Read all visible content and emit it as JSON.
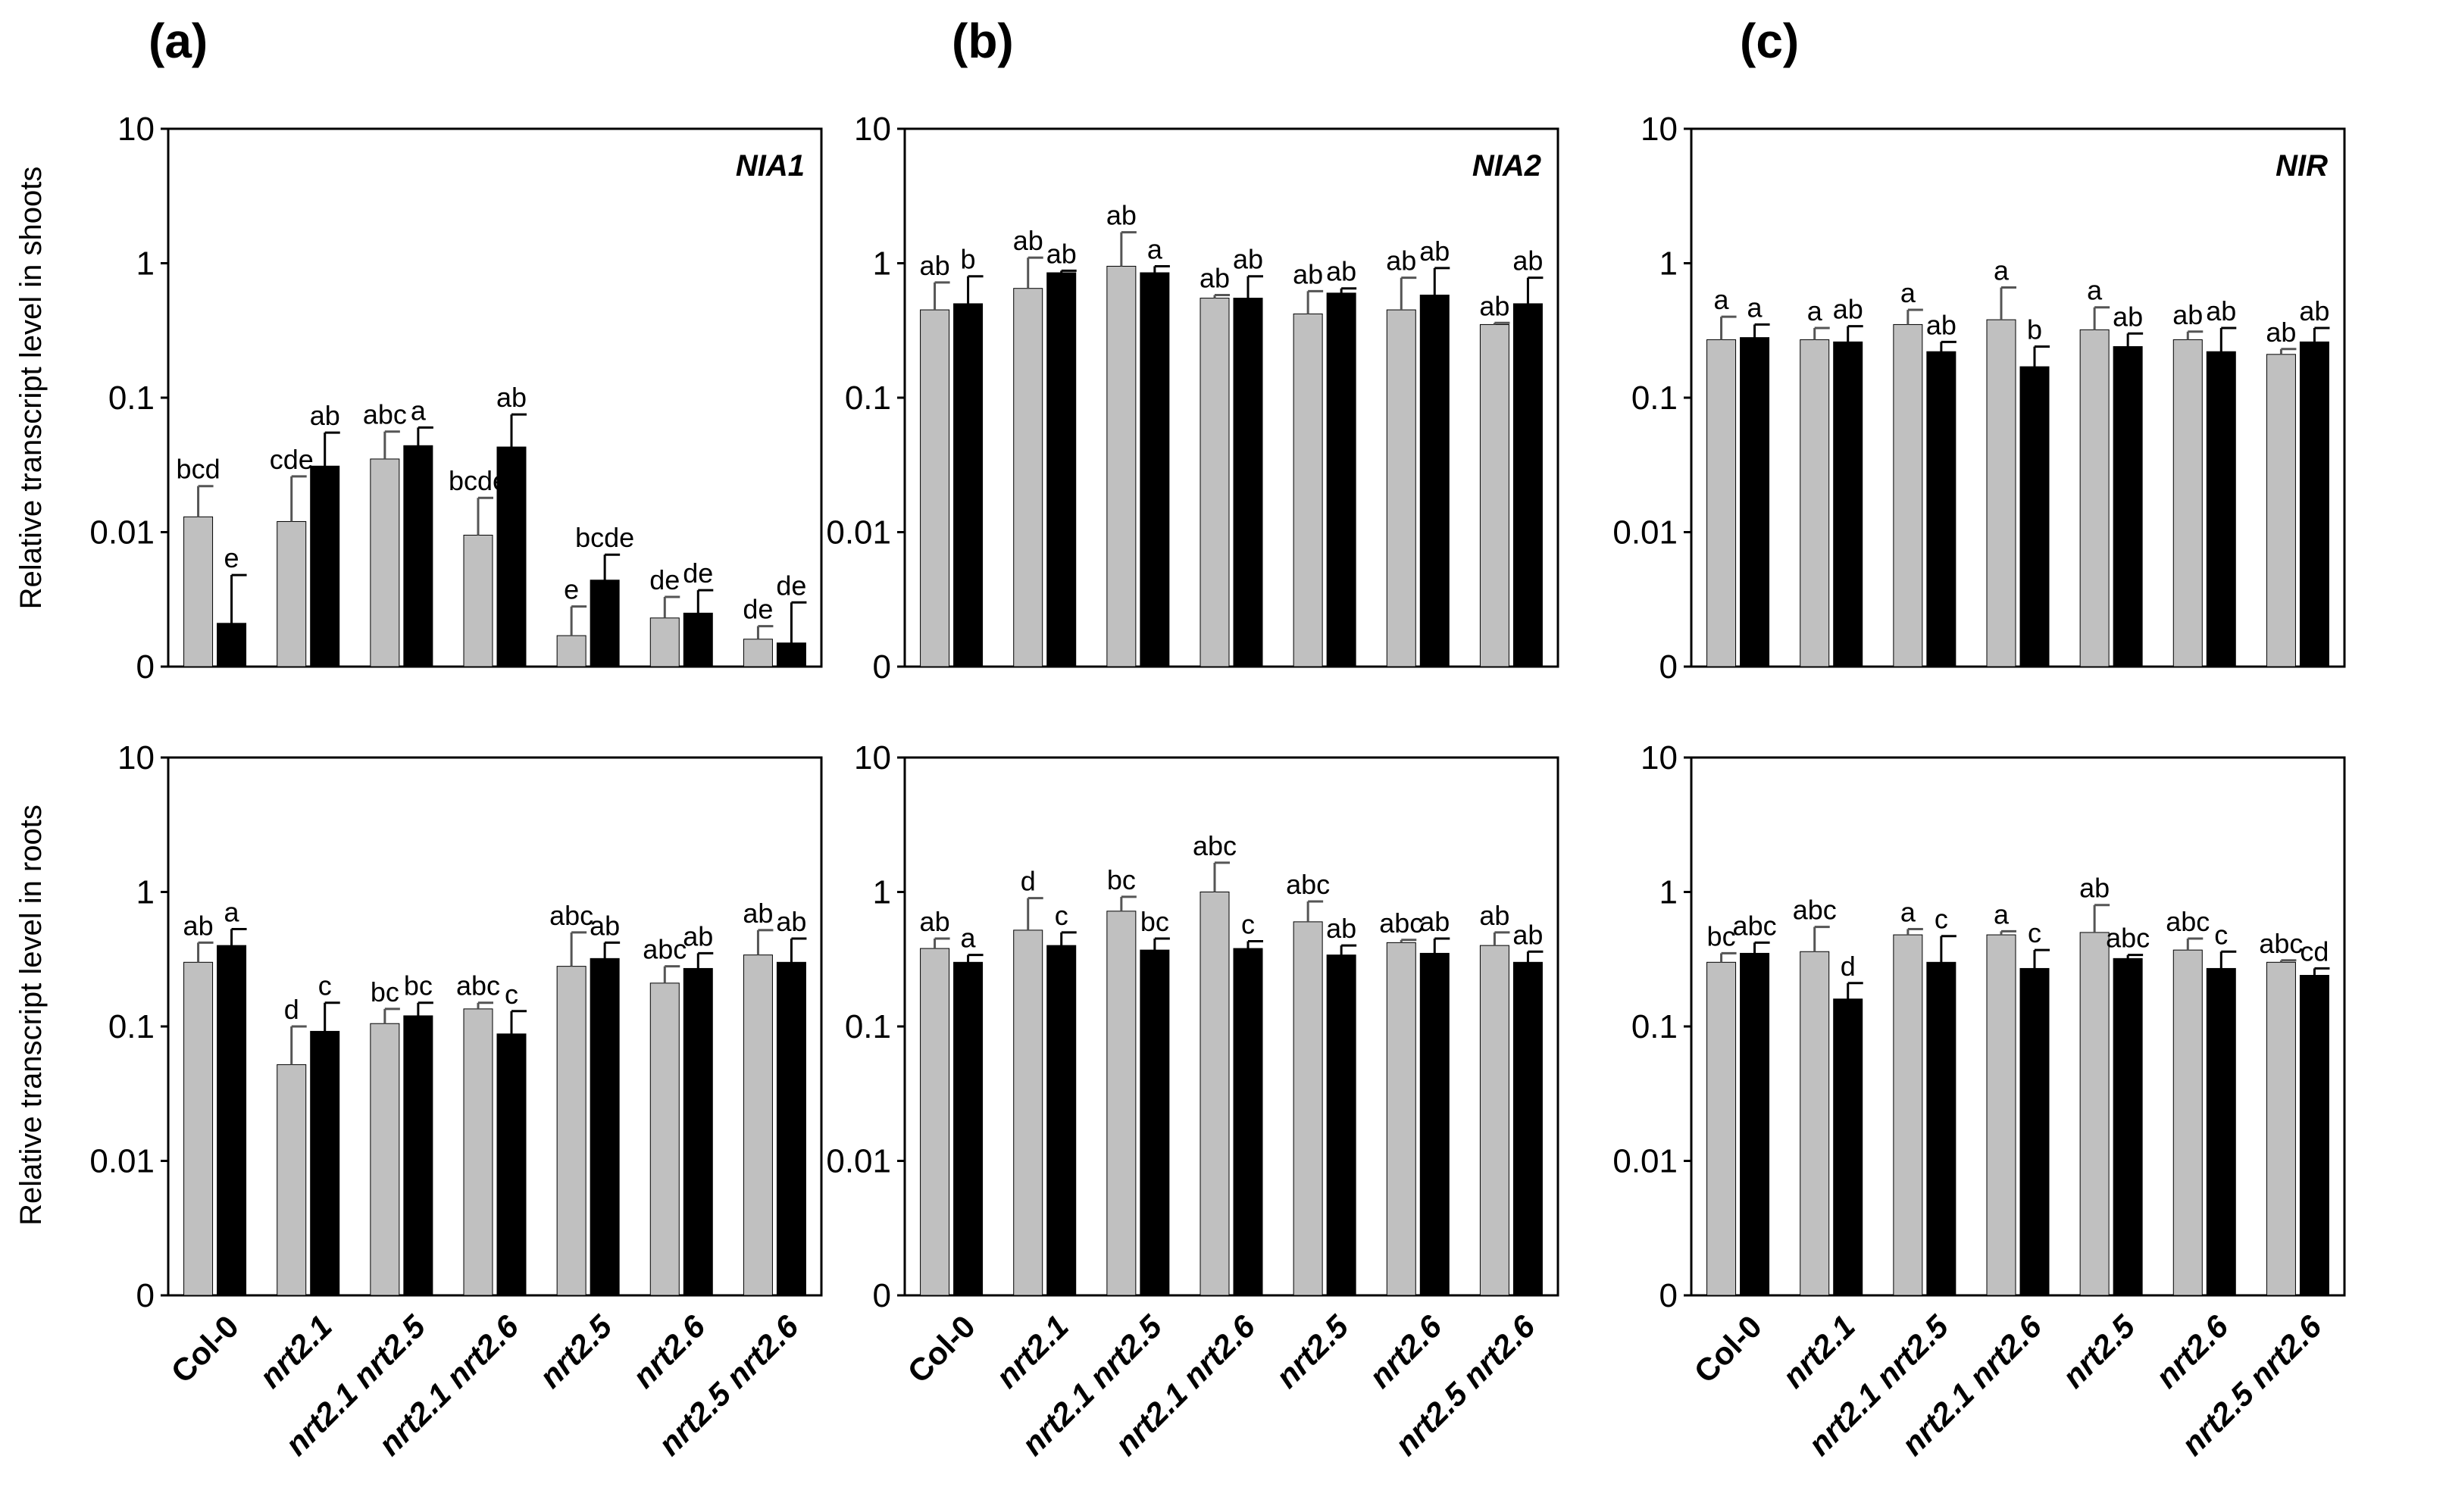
{
  "figure": {
    "panel_letters": [
      "(a)",
      "(b)",
      "(c)"
    ],
    "ylabels": [
      "Relative transcript level in shoots",
      "Relative transcript level in roots"
    ],
    "ytick_labels": [
      "10",
      "1",
      "0.1",
      "0.01",
      "0"
    ],
    "colors": {
      "series1": "#c0c0c0",
      "series2": "#000000",
      "axis": "#000000"
    }
  },
  "chart_data": [
    {
      "type": "bar",
      "panel": "(a)",
      "organ": "shoots",
      "gene": "NIA1",
      "yscale": "log",
      "ylim": [
        0.001,
        10
      ],
      "categories": [
        "Col-0",
        "nrt2.1",
        "nrt2.1 nrt2.5",
        "nrt2.1 nrt2.6",
        "nrt2.5",
        "nrt2.6",
        "nrt2.5 nrt2.6"
      ],
      "series": [
        {
          "values": [
            0.013,
            0.012,
            0.035,
            0.0095,
            0.0017,
            0.0023,
            0.0016
          ],
          "errors": [
            0.022,
            0.026,
            0.056,
            0.018,
            0.0028,
            0.0033,
            0.002
          ],
          "labels": [
            "bcd",
            "cde",
            "abc",
            "bcde",
            "e",
            "de",
            "de"
          ]
        },
        {
          "values": [
            0.0021,
            0.031,
            0.044,
            0.043,
            0.0044,
            0.0025,
            0.0015
          ],
          "errors": [
            0.0048,
            0.055,
            0.06,
            0.075,
            0.0068,
            0.0037,
            0.003
          ],
          "labels": [
            "e",
            "ab",
            "a",
            "ab",
            "bcde",
            "de",
            "de"
          ]
        }
      ]
    },
    {
      "type": "bar",
      "panel": "(b)",
      "organ": "shoots",
      "gene": "NIA2",
      "yscale": "log",
      "ylim": [
        0.001,
        10
      ],
      "categories": [
        "Col-0",
        "nrt2.1",
        "nrt2.1 nrt2.5",
        "nrt2.1 nrt2.6",
        "nrt2.5",
        "nrt2.6",
        "nrt2.5 nrt2.6"
      ],
      "series": [
        {
          "values": [
            0.45,
            0.65,
            0.95,
            0.55,
            0.42,
            0.45,
            0.35
          ],
          "errors": [
            0.72,
            1.1,
            1.7,
            0.58,
            0.62,
            0.78,
            0.36
          ],
          "labels": [
            "ab",
            "ab",
            "ab",
            "ab",
            "ab",
            "ab",
            "ab"
          ]
        },
        {
          "values": [
            0.5,
            0.85,
            0.85,
            0.55,
            0.6,
            0.58,
            0.5
          ],
          "errors": [
            0.8,
            0.88,
            0.95,
            0.8,
            0.65,
            0.92,
            0.78
          ],
          "labels": [
            "b",
            "ab",
            "a",
            "ab",
            "ab",
            "ab",
            "ab"
          ]
        }
      ]
    },
    {
      "type": "bar",
      "panel": "(c)",
      "organ": "shoots",
      "gene": "NIR",
      "yscale": "log",
      "ylim": [
        0.001,
        10
      ],
      "categories": [
        "Col-0",
        "nrt2.1",
        "nrt2.1 nrt2.5",
        "nrt2.1 nrt2.6",
        "nrt2.5",
        "nrt2.6",
        "nrt2.5 nrt2.6"
      ],
      "series": [
        {
          "values": [
            0.27,
            0.27,
            0.35,
            0.38,
            0.32,
            0.27,
            0.21
          ],
          "errors": [
            0.4,
            0.33,
            0.45,
            0.66,
            0.47,
            0.31,
            0.23
          ],
          "labels": [
            "a",
            "a",
            "a",
            "a",
            "a",
            "ab",
            "ab"
          ]
        },
        {
          "values": [
            0.28,
            0.26,
            0.22,
            0.17,
            0.24,
            0.22,
            0.26
          ],
          "errors": [
            0.35,
            0.34,
            0.26,
            0.24,
            0.3,
            0.33,
            0.33
          ],
          "labels": [
            "a",
            "ab",
            "ab",
            "b",
            "ab",
            "ab",
            "ab"
          ]
        }
      ]
    },
    {
      "type": "bar",
      "panel": "(a)",
      "organ": "roots",
      "gene": "",
      "yscale": "log",
      "ylim": [
        0.001,
        10
      ],
      "categories": [
        "Col-0",
        "nrt2.1",
        "nrt2.1 nrt2.5",
        "nrt2.1 nrt2.6",
        "nrt2.5",
        "nrt2.6",
        "nrt2.5 nrt2.6"
      ],
      "series": [
        {
          "values": [
            0.3,
            0.052,
            0.105,
            0.135,
            0.28,
            0.21,
            0.34
          ],
          "errors": [
            0.42,
            0.1,
            0.135,
            0.15,
            0.5,
            0.28,
            0.52
          ],
          "labels": [
            "ab",
            "d",
            "bc",
            "abc",
            "abc",
            "abc",
            "ab"
          ]
        },
        {
          "values": [
            0.4,
            0.092,
            0.12,
            0.088,
            0.32,
            0.27,
            0.3
          ],
          "errors": [
            0.53,
            0.15,
            0.15,
            0.13,
            0.42,
            0.35,
            0.45
          ],
          "labels": [
            "a",
            "c",
            "bc",
            "c",
            "ab",
            "ab",
            "ab"
          ]
        }
      ]
    },
    {
      "type": "bar",
      "panel": "(b)",
      "organ": "roots",
      "gene": "",
      "yscale": "log",
      "ylim": [
        0.001,
        10
      ],
      "categories": [
        "Col-0",
        "nrt2.1",
        "nrt2.1 nrt2.5",
        "nrt2.1 nrt2.6",
        "nrt2.5",
        "nrt2.6",
        "nrt2.5 nrt2.6"
      ],
      "series": [
        {
          "values": [
            0.38,
            0.52,
            0.72,
            1.0,
            0.6,
            0.42,
            0.4
          ],
          "errors": [
            0.45,
            0.9,
            0.92,
            1.65,
            0.85,
            0.44,
            0.5
          ],
          "labels": [
            "ab",
            "d",
            "bc",
            "abc",
            "abc",
            "abc",
            "ab"
          ]
        },
        {
          "values": [
            0.3,
            0.4,
            0.37,
            0.38,
            0.34,
            0.35,
            0.3
          ],
          "errors": [
            0.34,
            0.5,
            0.45,
            0.43,
            0.4,
            0.45,
            0.36
          ],
          "labels": [
            "a",
            "c",
            "bc",
            "c",
            "ab",
            "ab",
            "ab"
          ]
        }
      ]
    },
    {
      "type": "bar",
      "panel": "(c)",
      "organ": "roots",
      "gene": "",
      "yscale": "log",
      "ylim": [
        0.001,
        10
      ],
      "categories": [
        "Col-0",
        "nrt2.1",
        "nrt2.1 nrt2.5",
        "nrt2.1 nrt2.6",
        "nrt2.5",
        "nrt2.6",
        "nrt2.5 nrt2.6"
      ],
      "series": [
        {
          "values": [
            0.3,
            0.36,
            0.48,
            0.48,
            0.5,
            0.37,
            0.3
          ],
          "errors": [
            0.35,
            0.55,
            0.53,
            0.51,
            0.8,
            0.45,
            0.31
          ],
          "labels": [
            "bc",
            "abc",
            "a",
            "a",
            "ab",
            "abc",
            "abc"
          ]
        },
        {
          "values": [
            0.35,
            0.16,
            0.3,
            0.27,
            0.32,
            0.27,
            0.24
          ],
          "errors": [
            0.42,
            0.21,
            0.47,
            0.37,
            0.34,
            0.36,
            0.27
          ],
          "labels": [
            "abc",
            "d",
            "c",
            "c",
            "abc",
            "c",
            "cd"
          ]
        }
      ]
    }
  ]
}
